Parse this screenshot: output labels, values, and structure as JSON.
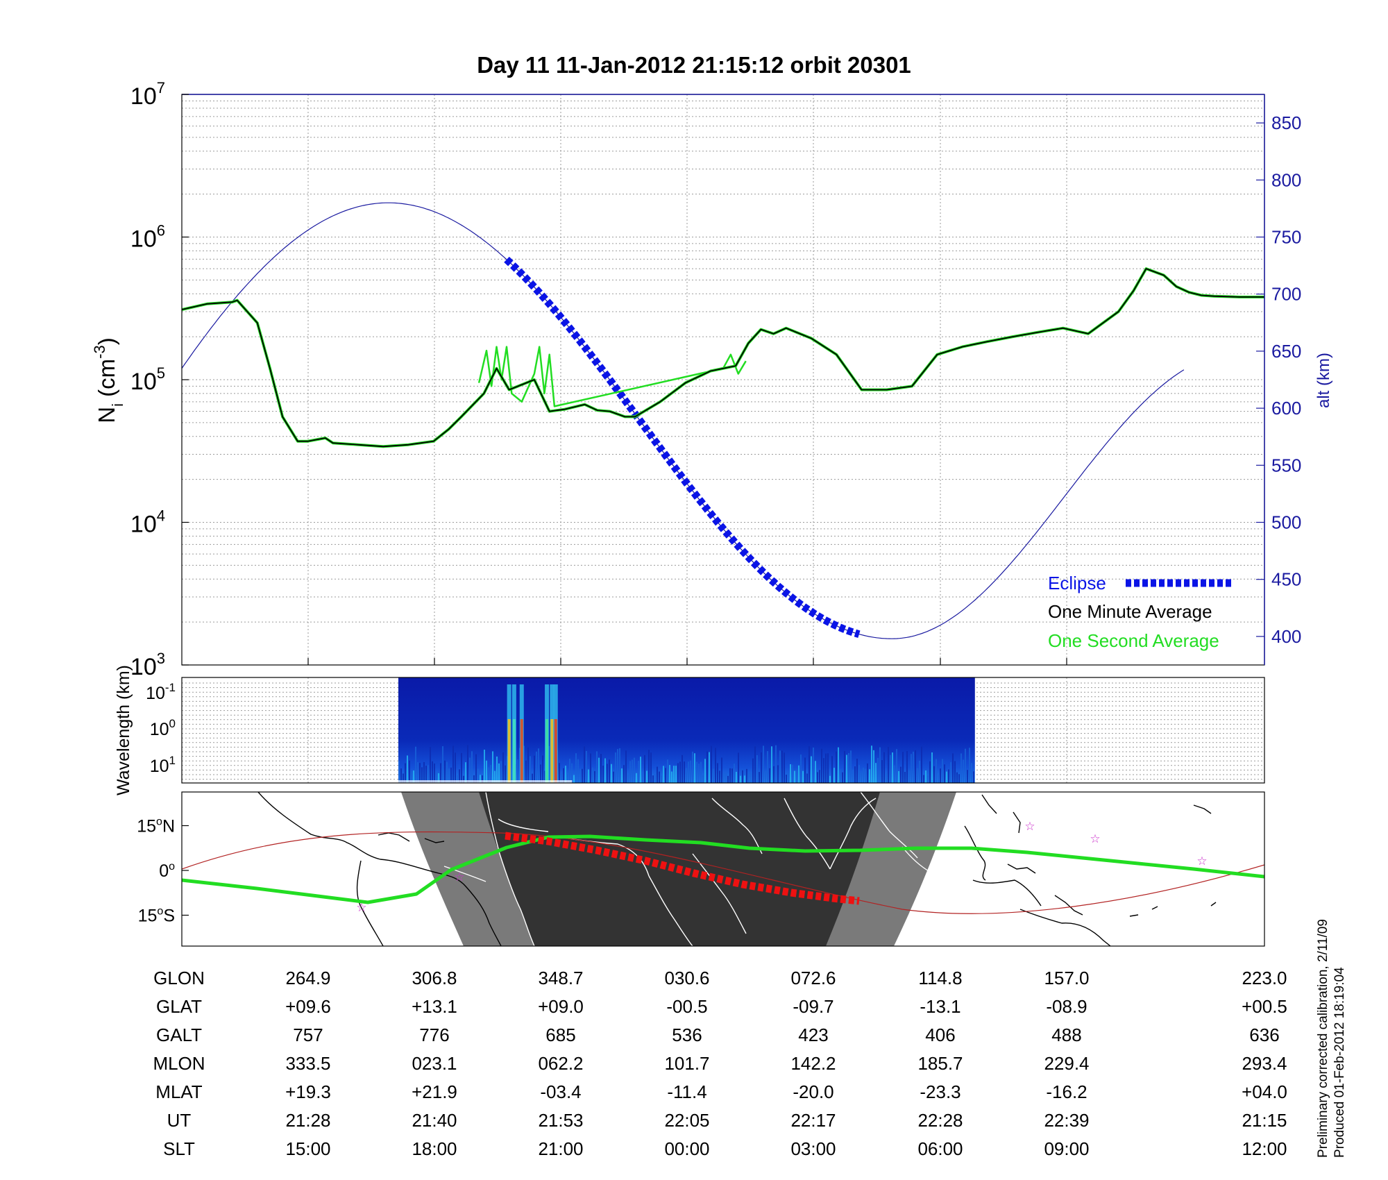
{
  "title": "Day 11  11-Jan-2012 21:15:12   orbit 20301",
  "footnote": {
    "line1": "Preliminary corrected calibration, 2/11/09",
    "line2": "Produced 01-Feb-2012 18:19:04"
  },
  "colors": {
    "one_minute": "#000000",
    "one_second": "#22dd22",
    "altitude": "#1a1aa0",
    "eclipse": "#0a14e6",
    "axis_right": "#1a1aa0",
    "night_core": "#333333",
    "night_penumbra": "#7a7a7a",
    "ground_track": "#22dd22",
    "eclipse_track": "#ee1111",
    "magnetic_equator": "#b22222",
    "star_marker": "#cc33cc"
  },
  "chart_data": [
    {
      "type": "line",
      "panel": "density",
      "ylabel_main": "N",
      "ylabel_sub": "i",
      "ylabel_unit_base": "(cm",
      "ylabel_unit_exp": "-3",
      "ylabel_unit_close": ")",
      "y2label": "alt (km)",
      "y_scale": "log",
      "y_ticks": [
        {
          "base": "10",
          "exp": "3"
        },
        {
          "base": "10",
          "exp": "4"
        },
        {
          "base": "10",
          "exp": "5"
        },
        {
          "base": "10",
          "exp": "6"
        },
        {
          "base": "10",
          "exp": "7"
        }
      ],
      "ylim": [
        1000,
        10000000
      ],
      "y2lim": [
        375,
        875
      ],
      "y2_ticks": [
        "400",
        "450",
        "500",
        "550",
        "600",
        "650",
        "700",
        "750",
        "800",
        "850"
      ],
      "y2_values": [
        400,
        450,
        500,
        550,
        600,
        650,
        700,
        750,
        800,
        850
      ],
      "x_range_min": [
        0,
        43
      ],
      "grid": true,
      "legend_position": "bottom-right",
      "legend": [
        {
          "label": "Eclipse",
          "color": "#0a14e6"
        },
        {
          "label": "One Minute Average",
          "color": "#000000"
        },
        {
          "label": "One Second Average",
          "color": "#22dd22"
        }
      ],
      "series": [
        {
          "name": "One Minute Average",
          "x": [
            0,
            1,
            2,
            2.2,
            3,
            3.5,
            4,
            4.6,
            5,
            5.7,
            6,
            7,
            8,
            9,
            10,
            10.6,
            11.1,
            12,
            12.5,
            13,
            14,
            14.6,
            15.2,
            16,
            16.5,
            17,
            17.6,
            18,
            19,
            20,
            21,
            22,
            22.5,
            23,
            23.5,
            24,
            25,
            26,
            27,
            28,
            29,
            30,
            31,
            32,
            33,
            34,
            35,
            36,
            37.2,
            37.8,
            38.3,
            39,
            39.5,
            40,
            40.5,
            41,
            42,
            43
          ],
          "y": [
            310000,
            340000,
            350000,
            360000,
            250000,
            120000,
            55000,
            37000,
            37000,
            39000,
            36000,
            35000,
            34000,
            35000,
            37000,
            45000,
            55000,
            80000,
            120000,
            85000,
            100000,
            60000,
            62000,
            67000,
            61000,
            60000,
            55000,
            55000,
            70000,
            95000,
            115000,
            125000,
            180000,
            225000,
            210000,
            230000,
            195000,
            150000,
            85000,
            85000,
            90000,
            150000,
            170000,
            185000,
            200000,
            215000,
            230000,
            210000,
            300000,
            420000,
            600000,
            540000,
            450000,
            410000,
            390000,
            385000,
            380000,
            380000
          ]
        },
        {
          "name": "One Second Average",
          "x": [
            11.8,
            12.1,
            12.3,
            12.5,
            12.7,
            12.9,
            13.1,
            13.5,
            14.0,
            14.2,
            14.4,
            14.6,
            14.8,
            21.5,
            21.8,
            22.1,
            22.4
          ],
          "y": [
            95000,
            160000,
            90000,
            170000,
            100000,
            170000,
            80000,
            70000,
            110000,
            170000,
            80000,
            150000,
            65000,
            120000,
            150000,
            110000,
            135000
          ]
        },
        {
          "name": "altitude",
          "x": [
            0,
            8.2,
            28.2,
            39.9
          ],
          "y_km": [
            635,
            780,
            398,
            635
          ]
        }
      ],
      "eclipse_x": [
        12.9,
        26.9
      ]
    },
    {
      "type": "heatmap",
      "panel": "spectrogram",
      "ylabel": "Wavelength (km)",
      "y_ticks": [
        {
          "base": "10",
          "exp": "-1"
        },
        {
          "base": "10",
          "exp": "0"
        },
        {
          "base": "10",
          "exp": "1"
        }
      ],
      "data_x_range": [
        8.6,
        31.5
      ]
    },
    {
      "type": "map",
      "panel": "groundtrack",
      "lat_ticks": [
        {
          "value": "15",
          "sup": "o",
          "suffix": "N"
        },
        {
          "value": "0",
          "sup": "o",
          "suffix": ""
        },
        {
          "value": "15",
          "sup": "o",
          "suffix": "S"
        }
      ],
      "lat_values": [
        15,
        0,
        -15
      ]
    }
  ],
  "table": {
    "row_labels": [
      "GLON",
      "GLAT",
      "GALT",
      "MLON",
      "MLAT",
      "UT",
      "SLT"
    ],
    "columns": [
      [
        "264.9",
        "+09.6",
        "757",
        "333.5",
        "+19.3",
        "21:28",
        "15:00"
      ],
      [
        "306.8",
        "+13.1",
        "776",
        "023.1",
        "+21.9",
        "21:40",
        "18:00"
      ],
      [
        "348.7",
        "+09.0",
        "685",
        "062.2",
        "-03.4",
        "21:53",
        "21:00"
      ],
      [
        "030.6",
        "-00.5",
        "536",
        "101.7",
        "-11.4",
        "22:05",
        "00:00"
      ],
      [
        "072.6",
        "-09.7",
        "423",
        "142.2",
        "-20.0",
        "22:17",
        "03:00"
      ],
      [
        "114.8",
        "-13.1",
        "406",
        "185.7",
        "-23.3",
        "22:28",
        "06:00"
      ],
      [
        "157.0",
        "-08.9",
        "488",
        "229.4",
        "-16.2",
        "22:39",
        "09:00"
      ],
      [
        "223.0",
        "+00.5",
        "636",
        "293.4",
        "+04.0",
        "21:15",
        "12:00"
      ]
    ]
  }
}
